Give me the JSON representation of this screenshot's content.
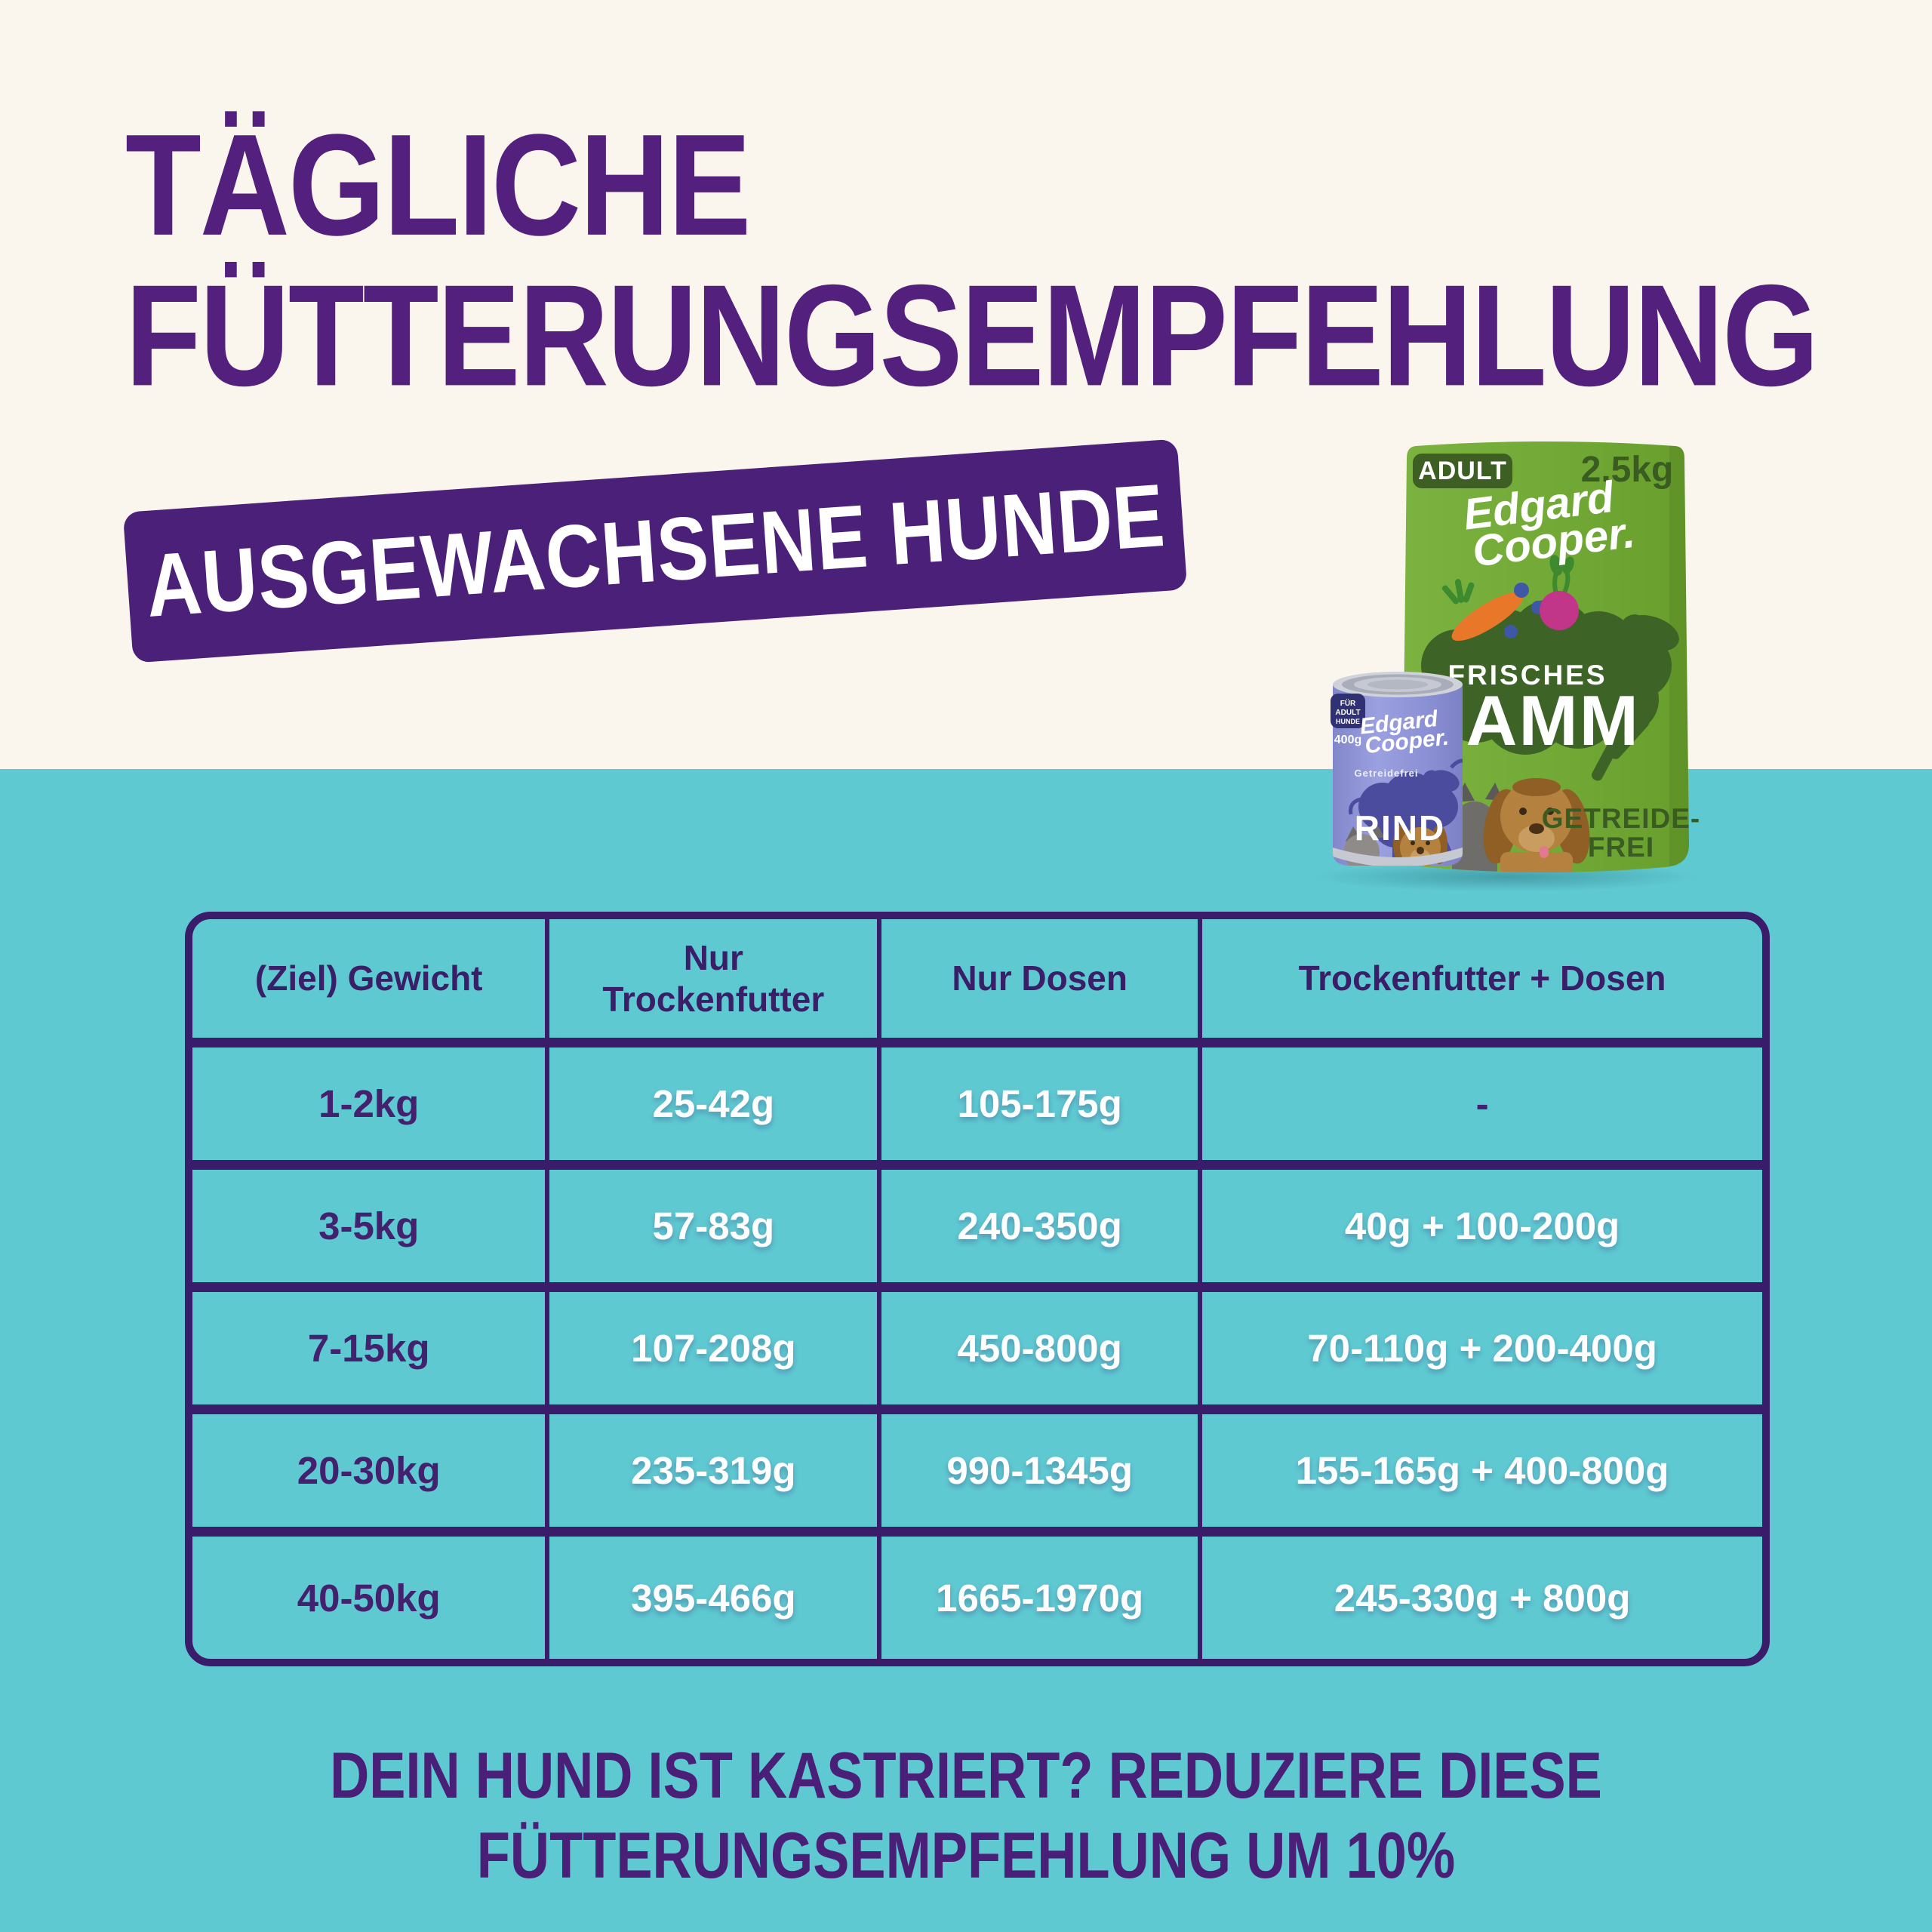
{
  "header": {
    "title_line1": "TÄGLICHE",
    "title_line2": "FÜTTERUNGSEMPFEHLUNG",
    "subtitle": "AUSGEWACHSENE HUNDE"
  },
  "products": {
    "bag": {
      "badge": "ADULT",
      "weight": "2.5kg",
      "brand_line1": "Edgard",
      "brand_line2": "Cooper.",
      "flavor_kicker": "FRISCHES",
      "flavor": "LAMM",
      "claim_line1": "GETREIDE-",
      "claim_line2": "FREI"
    },
    "can": {
      "badge_line1": "FÜR",
      "badge_line2": "ADULT",
      "badge_line3": "HUNDE",
      "weight": "400g",
      "brand_line1": "Edgard",
      "brand_line2": "Cooper.",
      "claim": "Getreidefrei",
      "flavor": "RIND"
    }
  },
  "chart_data": {
    "type": "table",
    "title": "Tägliche Fütterungsempfehlung – Ausgewachsene Hunde",
    "columns": [
      "(Ziel) Gewicht",
      "Nur Trockenfutter",
      "Nur Dosen",
      "Trockenfutter + Dosen"
    ],
    "rows": [
      [
        "1-2kg",
        "25-42g",
        "105-175g",
        "-"
      ],
      [
        "3-5kg",
        "57-83g",
        "240-350g",
        "40g + 100-200g"
      ],
      [
        "7-15kg",
        "107-208g",
        "450-800g",
        "70-110g + 200-400g"
      ],
      [
        "20-30kg",
        "235-319g",
        "990-1345g",
        "155-165g + 400-800g"
      ],
      [
        "40-50kg",
        "395-466g",
        "1665-1970g",
        "245-330g + 800g"
      ]
    ]
  },
  "footer": {
    "line1": "DEIN HUND IST KASTRIERT? REDUZIERE DIESE",
    "line2": "FÜTTERUNGSEMPFEHLUNG UM 10%"
  },
  "colors": {
    "cream_background": "#FAF6EE",
    "teal_background": "#5FC9D2",
    "title_purple": "#54207E",
    "banner_purple": "#4B2079",
    "table_border_purple": "#3A1C6B",
    "cell_text_dark_purple": "#44216F",
    "cell_text_light": "#FFFFFF",
    "bag_green": "#72A936",
    "bag_dark_green": "#3A5B22",
    "can_lavender": "#8E91D6",
    "can_dark_blue": "#4B4C9E"
  }
}
